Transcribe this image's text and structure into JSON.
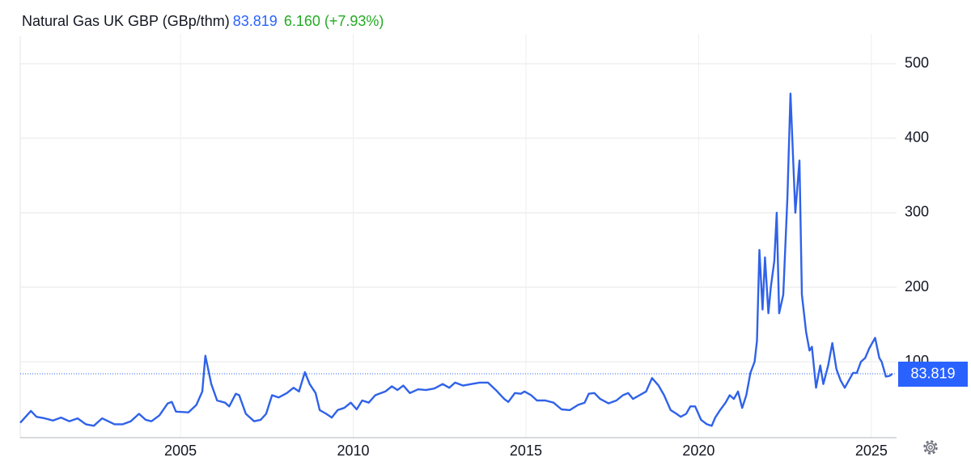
{
  "chart_data": {
    "type": "line",
    "title": "Natural Gas UK GBP (GBp/thm)",
    "last_value": 83.819,
    "change": "6.160 (+7.93%)",
    "color": "#2f62e9",
    "grid": true,
    "xlim": [
      2000.36,
      2025.73
    ],
    "xticks": [
      2005,
      2010,
      2015,
      2020,
      2025
    ],
    "ylim": [
      -2,
      540
    ],
    "yticks": [
      100,
      200,
      300,
      400,
      500
    ],
    "x": [
      2000.36,
      2000.67,
      2000.83,
      2001.07,
      2001.31,
      2001.54,
      2001.78,
      2002.02,
      2002.26,
      2002.49,
      2002.73,
      2003.09,
      2003.33,
      2003.56,
      2003.8,
      2003.99,
      2004.16,
      2004.39,
      2004.63,
      2004.75,
      2004.87,
      2005.23,
      2005.46,
      2005.63,
      2005.72,
      2005.89,
      2006.06,
      2006.29,
      2006.41,
      2006.6,
      2006.7,
      2006.89,
      2007.13,
      2007.32,
      2007.48,
      2007.65,
      2007.84,
      2008.08,
      2008.27,
      2008.43,
      2008.6,
      2008.74,
      2008.91,
      2009.03,
      2009.22,
      2009.38,
      2009.55,
      2009.74,
      2009.93,
      2010.1,
      2010.26,
      2010.45,
      2010.64,
      2010.81,
      2010.93,
      2011.12,
      2011.28,
      2011.45,
      2011.64,
      2011.88,
      2012.11,
      2012.35,
      2012.59,
      2012.78,
      2012.95,
      2013.18,
      2013.42,
      2013.66,
      2013.9,
      2014.13,
      2014.37,
      2014.49,
      2014.68,
      2014.85,
      2014.96,
      2015.15,
      2015.32,
      2015.56,
      2015.8,
      2016.03,
      2016.27,
      2016.51,
      2016.7,
      2016.82,
      2016.98,
      2017.15,
      2017.39,
      2017.62,
      2017.81,
      2017.96,
      2018.1,
      2018.29,
      2018.48,
      2018.65,
      2018.84,
      2019.0,
      2019.19,
      2019.36,
      2019.48,
      2019.64,
      2019.76,
      2019.9,
      2020.07,
      2020.24,
      2020.38,
      2020.48,
      2020.62,
      2020.78,
      2020.9,
      2021.02,
      2021.14,
      2021.26,
      2021.38,
      2021.5,
      2021.62,
      2021.69,
      2021.76,
      2021.85,
      2021.92,
      2022.02,
      2022.09,
      2022.19,
      2022.26,
      2022.33,
      2022.45,
      2022.57,
      2022.66,
      2022.8,
      2022.92,
      2022.99,
      2023.11,
      2023.21,
      2023.28,
      2023.4,
      2023.52,
      2023.61,
      2023.75,
      2023.87,
      2023.99,
      2024.11,
      2024.23,
      2024.35,
      2024.47,
      2024.58,
      2024.7,
      2024.82,
      2024.94,
      2025.11,
      2025.23,
      2025.3,
      2025.42,
      2025.53,
      2025.61
    ],
    "values": [
      18,
      34,
      26,
      24,
      21,
      25,
      20,
      24,
      16,
      14,
      24,
      16,
      16,
      20,
      30,
      22,
      20,
      28,
      44,
      46,
      33,
      32,
      42,
      60,
      108,
      70,
      48,
      45,
      40,
      57,
      55,
      30,
      20,
      22,
      30,
      55,
      52,
      58,
      65,
      60,
      86,
      70,
      58,
      35,
      30,
      25,
      35,
      38,
      45,
      36,
      48,
      45,
      55,
      58,
      60,
      67,
      62,
      68,
      58,
      63,
      62,
      64,
      70,
      65,
      72,
      68,
      70,
      72,
      72,
      62,
      50,
      46,
      58,
      57,
      60,
      55,
      48,
      48,
      45,
      36,
      35,
      42,
      45,
      57,
      58,
      50,
      44,
      48,
      55,
      58,
      50,
      55,
      60,
      78,
      68,
      55,
      35,
      30,
      26,
      30,
      40,
      40,
      22,
      16,
      14,
      25,
      35,
      45,
      55,
      50,
      60,
      38,
      55,
      85,
      100,
      128,
      250,
      170,
      240,
      165,
      200,
      235,
      300,
      165,
      190,
      320,
      460,
      300,
      370,
      190,
      140,
      115,
      120,
      65,
      95,
      70,
      95,
      125,
      90,
      75,
      65,
      75,
      85,
      85,
      100,
      105,
      118,
      132,
      105,
      100,
      80,
      81,
      83.819
    ]
  }
}
